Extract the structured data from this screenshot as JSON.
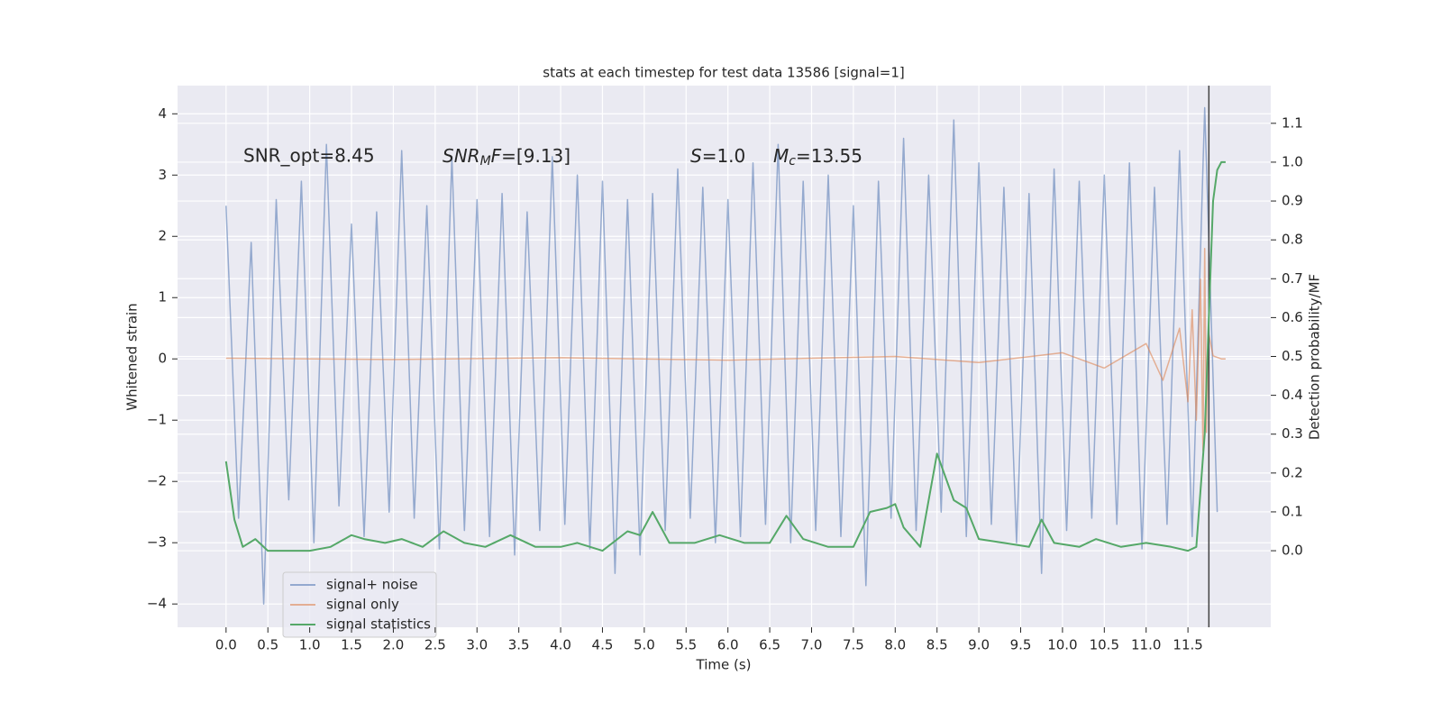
{
  "chart_data": {
    "type": "line",
    "title": "stats at each timestep for test data 13586 [signal=1]",
    "xlabel": "Time (s)",
    "ylabel": "Whitened strain",
    "y2label": "Detection probability/MF",
    "xlim": [
      -0.58,
      12.49
    ],
    "ylim": [
      -4.38,
      4.46
    ],
    "y2lim": [
      -0.197,
      1.197
    ],
    "xticks": [
      {
        "value": 0,
        "label": "0.0"
      },
      {
        "value": 0.5,
        "label": "0.5"
      },
      {
        "value": 1,
        "label": "1.0"
      },
      {
        "value": 1.5,
        "label": "1.5"
      },
      {
        "value": 2,
        "label": "2.0"
      },
      {
        "value": 2.5,
        "label": "2.5"
      },
      {
        "value": 3,
        "label": "3.0"
      },
      {
        "value": 3.5,
        "label": "3.5"
      },
      {
        "value": 4,
        "label": "4.0"
      },
      {
        "value": 4.5,
        "label": "4.5"
      },
      {
        "value": 5,
        "label": "5.0"
      },
      {
        "value": 5.5,
        "label": "5.5"
      },
      {
        "value": 6,
        "label": "6.0"
      },
      {
        "value": 6.5,
        "label": "6.5"
      },
      {
        "value": 7,
        "label": "7.0"
      },
      {
        "value": 7.5,
        "label": "7.5"
      },
      {
        "value": 8,
        "label": "8.0"
      },
      {
        "value": 8.5,
        "label": "8.5"
      },
      {
        "value": 9,
        "label": "9.0"
      },
      {
        "value": 9.5,
        "label": "9.5"
      },
      {
        "value": 10,
        "label": "10.0"
      },
      {
        "value": 10.5,
        "label": "10.5"
      },
      {
        "value": 11,
        "label": "11.0"
      },
      {
        "value": 11.5,
        "label": "11.5"
      }
    ],
    "yticks": [
      {
        "value": -4,
        "label": "−4"
      },
      {
        "value": -3,
        "label": "−3"
      },
      {
        "value": -2,
        "label": "−2"
      },
      {
        "value": -1,
        "label": "−1"
      },
      0,
      1,
      2,
      3,
      4
    ],
    "y2ticks": [
      {
        "value": 0,
        "label": "0.0"
      },
      {
        "value": 0.1,
        "label": "0.1"
      },
      {
        "value": 0.2,
        "label": "0.2"
      },
      {
        "value": 0.3,
        "label": "0.3"
      },
      {
        "value": 0.4,
        "label": "0.4"
      },
      {
        "value": 0.5,
        "label": "0.5"
      },
      {
        "value": 0.6,
        "label": "0.6"
      },
      {
        "value": 0.7,
        "label": "0.7"
      },
      {
        "value": 0.8,
        "label": "0.8"
      },
      {
        "value": 0.9,
        "label": "0.9"
      },
      {
        "value": 1,
        "label": "1.0"
      },
      {
        "value": 1.1,
        "label": "1.1"
      }
    ],
    "grid": true,
    "legend": "lower left",
    "annotations": {
      "snr_opt": "SNR_opt=8.45",
      "snr_mf": [
        "SNR",
        "M",
        "F",
        "=[9.13]"
      ],
      "s": [
        "S",
        "=1.0"
      ],
      "mc": [
        "M",
        "c",
        "=13.55"
      ]
    },
    "vline": {
      "x": 11.75,
      "color": "#444444"
    },
    "series": [
      {
        "name": "signal+ noise",
        "color": "#4c72b0",
        "opacity": 0.55,
        "x": [
          0,
          0.15,
          0.3,
          0.45,
          0.6,
          0.75,
          0.9,
          1.05,
          1.2,
          1.35,
          1.5,
          1.65,
          1.8,
          1.95,
          2.1,
          2.25,
          2.4,
          2.55,
          2.7,
          2.85,
          3.0,
          3.15,
          3.3,
          3.45,
          3.6,
          3.75,
          3.9,
          4.05,
          4.2,
          4.35,
          4.5,
          4.65,
          4.8,
          4.95,
          5.1,
          5.25,
          5.4,
          5.55,
          5.7,
          5.85,
          6.0,
          6.15,
          6.3,
          6.45,
          6.6,
          6.75,
          6.9,
          7.05,
          7.2,
          7.35,
          7.5,
          7.65,
          7.8,
          7.95,
          8.1,
          8.25,
          8.4,
          8.55,
          8.7,
          8.85,
          9.0,
          9.15,
          9.3,
          9.45,
          9.6,
          9.75,
          9.9,
          10.05,
          10.2,
          10.35,
          10.5,
          10.65,
          10.8,
          10.95,
          11.1,
          11.25,
          11.4,
          11.55,
          11.7,
          11.85
        ],
        "values": [
          2.5,
          -2.6,
          1.9,
          -4.0,
          2.6,
          -2.3,
          2.9,
          -3.0,
          3.5,
          -2.4,
          2.2,
          -2.9,
          2.4,
          -2.5,
          3.4,
          -2.6,
          2.5,
          -3.1,
          3.3,
          -2.8,
          2.6,
          -2.9,
          2.7,
          -3.2,
          2.4,
          -2.8,
          3.3,
          -2.7,
          3.0,
          -3.1,
          2.9,
          -3.5,
          2.6,
          -3.2,
          2.7,
          -2.8,
          3.1,
          -2.6,
          2.8,
          -3.0,
          2.6,
          -2.9,
          3.2,
          -2.7,
          3.5,
          -3.0,
          2.9,
          -2.8,
          3.0,
          -2.9,
          2.5,
          -3.7,
          2.9,
          -2.6,
          3.6,
          -2.8,
          3.0,
          -2.5,
          3.9,
          -2.9,
          3.2,
          -2.7,
          2.8,
          -3.0,
          2.7,
          -3.5,
          3.1,
          -2.8,
          2.9,
          -2.6,
          3.0,
          -2.7,
          3.2,
          -3.1,
          2.8,
          -2.7,
          3.4,
          -2.9,
          4.1,
          -2.5
        ]
      },
      {
        "name": "signal only",
        "color": "#dd8452",
        "opacity": 0.6,
        "x": [
          0,
          2,
          4,
          6,
          8,
          9,
          10,
          10.5,
          11,
          11.2,
          11.4,
          11.5,
          11.55,
          11.6,
          11.65,
          11.68,
          11.7,
          11.72,
          11.75,
          11.8,
          11.9,
          11.95
        ],
        "values": [
          0.01,
          -0.01,
          0.02,
          -0.02,
          0.04,
          -0.06,
          0.1,
          -0.15,
          0.25,
          -0.35,
          0.5,
          -0.7,
          0.8,
          -1.0,
          1.3,
          -1.5,
          1.8,
          -1.2,
          0.4,
          0.05,
          0.0,
          0.0
        ]
      },
      {
        "name": "signal statistics",
        "color": "#55a868",
        "opacity": 1,
        "axis": "y2",
        "x": [
          0,
          0.1,
          0.2,
          0.35,
          0.5,
          0.75,
          1.0,
          1.25,
          1.5,
          1.65,
          1.9,
          2.1,
          2.35,
          2.6,
          2.85,
          3.1,
          3.4,
          3.7,
          4.0,
          4.2,
          4.5,
          4.8,
          4.95,
          5.1,
          5.3,
          5.6,
          5.9,
          6.2,
          6.5,
          6.7,
          6.9,
          7.2,
          7.5,
          7.7,
          7.9,
          8.0,
          8.1,
          8.3,
          8.5,
          8.7,
          8.85,
          9.0,
          9.3,
          9.6,
          9.75,
          9.9,
          10.2,
          10.4,
          10.7,
          11.0,
          11.3,
          11.5,
          11.6,
          11.7,
          11.75,
          11.8,
          11.85,
          11.9,
          11.95
        ],
        "values": [
          0.23,
          0.08,
          0.01,
          0.03,
          0.0,
          0.0,
          0.0,
          0.01,
          0.04,
          0.03,
          0.02,
          0.03,
          0.01,
          0.05,
          0.02,
          0.01,
          0.04,
          0.01,
          0.01,
          0.02,
          0.0,
          0.05,
          0.04,
          0.1,
          0.02,
          0.02,
          0.04,
          0.02,
          0.02,
          0.09,
          0.03,
          0.01,
          0.01,
          0.1,
          0.11,
          0.12,
          0.06,
          0.01,
          0.25,
          0.13,
          0.11,
          0.03,
          0.02,
          0.01,
          0.08,
          0.02,
          0.01,
          0.03,
          0.01,
          0.02,
          0.01,
          0.0,
          0.01,
          0.3,
          0.6,
          0.9,
          0.98,
          1.0,
          1.0
        ]
      }
    ]
  }
}
